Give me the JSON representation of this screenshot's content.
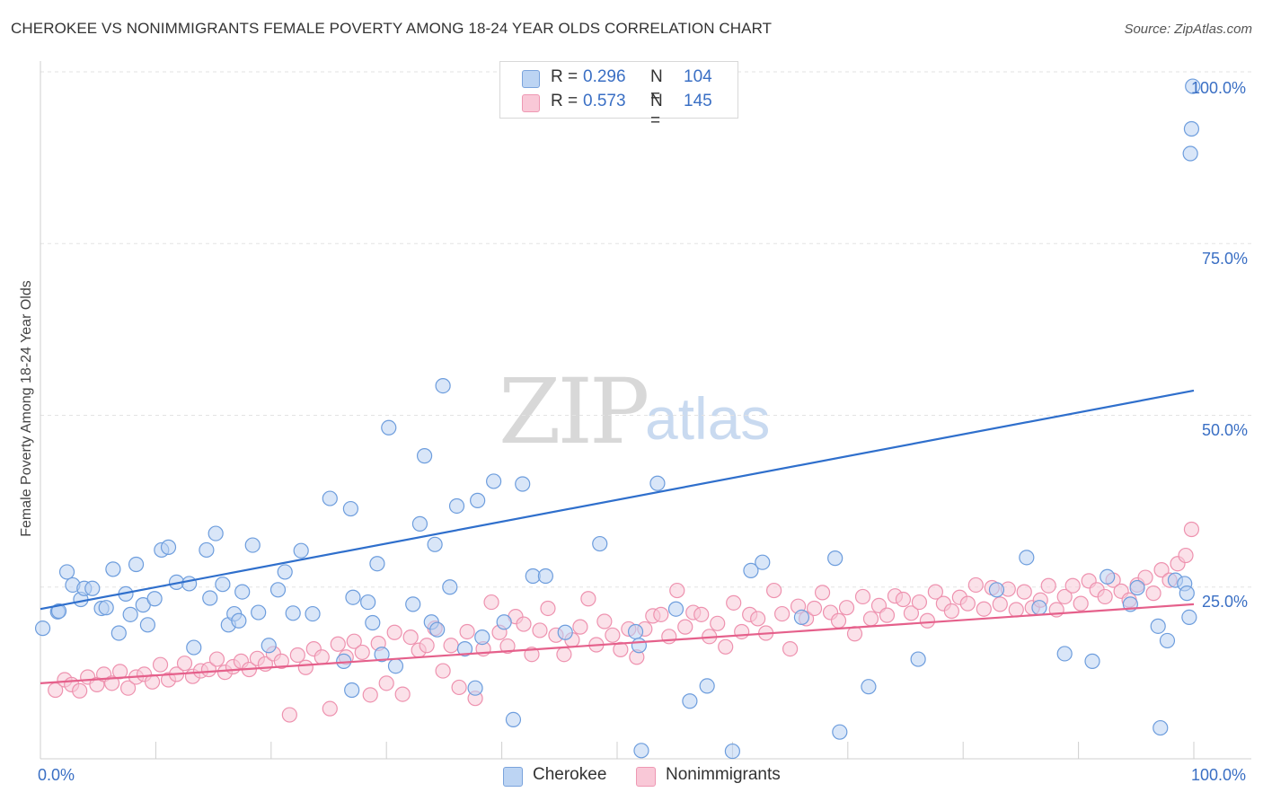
{
  "header": {
    "title": "CHEROKEE VS NONIMMIGRANTS FEMALE POVERTY AMONG 18-24 YEAR OLDS CORRELATION CHART",
    "source": "Source: ZipAtlas.com"
  },
  "watermark": {
    "part1": "ZIP",
    "part2": "atlas"
  },
  "legend_top": {
    "rows": [
      {
        "r_label": "R =",
        "r_value": "0.296",
        "n_label": "N =",
        "n_value": "104",
        "color": "#a9c8ef"
      },
      {
        "r_label": "R =",
        "r_value": "0.573",
        "n_label": "N =",
        "n_value": "145",
        "color": "#f5b8cb"
      }
    ]
  },
  "colors": {
    "cherokee_fill": "#b9d2f2",
    "cherokee_stroke": "#6d9ddd",
    "cherokee_line": "#2f6fcc",
    "nonimm_fill": "#f8c9d7",
    "nonimm_stroke": "#ee92af",
    "nonimm_line": "#e5608b",
    "tick_text": "#3a6fc4",
    "grid": "#e3e3e3"
  },
  "chart_data": {
    "type": "scatter",
    "title": "CHEROKEE VS NONIMMIGRANTS FEMALE POVERTY AMONG 18-24 YEAR OLDS CORRELATION CHART",
    "xlabel": "",
    "ylabel": "Female Poverty Among 18-24 Year Olds",
    "xlim": [
      0,
      100
    ],
    "ylim": [
      0,
      100
    ],
    "x_tick_labels": [
      "0.0%",
      "100.0%"
    ],
    "y_tick_labels": [
      "25.0%",
      "50.0%",
      "75.0%",
      "100.0%"
    ],
    "y_ticks": [
      25,
      50,
      75,
      100
    ],
    "grid": "horizontal dashed",
    "legend_position": "top-center and bottom",
    "series": [
      {
        "name": "Cherokee",
        "R": 0.296,
        "N": 104,
        "trend": [
          [
            0,
            21.8
          ],
          [
            100,
            53.6
          ]
        ],
        "points": [
          [
            0.2,
            19.0
          ],
          [
            1.5,
            21.4
          ],
          [
            1.6,
            21.5
          ],
          [
            2.3,
            27.2
          ],
          [
            2.8,
            25.3
          ],
          [
            3.5,
            23.2
          ],
          [
            3.8,
            24.8
          ],
          [
            4.5,
            24.8
          ],
          [
            5.3,
            21.9
          ],
          [
            5.7,
            22.0
          ],
          [
            6.3,
            27.6
          ],
          [
            6.8,
            18.3
          ],
          [
            7.4,
            24.0
          ],
          [
            7.8,
            21.0
          ],
          [
            8.3,
            28.3
          ],
          [
            8.9,
            22.4
          ],
          [
            9.3,
            19.5
          ],
          [
            9.9,
            23.3
          ],
          [
            10.5,
            30.4
          ],
          [
            11.1,
            30.8
          ],
          [
            11.8,
            25.7
          ],
          [
            12.9,
            25.5
          ],
          [
            13.3,
            16.2
          ],
          [
            14.4,
            30.4
          ],
          [
            14.7,
            23.4
          ],
          [
            15.2,
            32.8
          ],
          [
            15.8,
            25.4
          ],
          [
            16.3,
            19.5
          ],
          [
            16.8,
            21.1
          ],
          [
            17.2,
            20.1
          ],
          [
            17.5,
            24.3
          ],
          [
            18.4,
            31.1
          ],
          [
            18.9,
            21.3
          ],
          [
            19.8,
            16.5
          ],
          [
            20.6,
            24.6
          ],
          [
            21.2,
            27.2
          ],
          [
            21.9,
            21.2
          ],
          [
            22.6,
            30.3
          ],
          [
            23.6,
            21.1
          ],
          [
            25.1,
            37.9
          ],
          [
            26.3,
            14.2
          ],
          [
            26.9,
            36.4
          ],
          [
            27.0,
            10.0
          ],
          [
            27.1,
            23.5
          ],
          [
            28.4,
            22.8
          ],
          [
            28.8,
            19.8
          ],
          [
            29.2,
            28.4
          ],
          [
            29.6,
            15.2
          ],
          [
            30.2,
            48.2
          ],
          [
            30.8,
            13.5
          ],
          [
            32.3,
            22.5
          ],
          [
            32.9,
            34.2
          ],
          [
            33.3,
            44.1
          ],
          [
            33.9,
            19.9
          ],
          [
            34.2,
            31.2
          ],
          [
            34.4,
            18.8
          ],
          [
            34.9,
            54.3
          ],
          [
            35.5,
            25.0
          ],
          [
            36.1,
            36.8
          ],
          [
            36.8,
            16.0
          ],
          [
            37.7,
            10.3
          ],
          [
            37.9,
            37.6
          ],
          [
            38.3,
            17.7
          ],
          [
            39.3,
            40.4
          ],
          [
            40.2,
            19.9
          ],
          [
            41.0,
            5.7
          ],
          [
            41.8,
            40.0
          ],
          [
            42.7,
            26.6
          ],
          [
            43.8,
            26.6
          ],
          [
            45.5,
            18.4
          ],
          [
            48.5,
            31.3
          ],
          [
            51.6,
            18.5
          ],
          [
            51.9,
            16.5
          ],
          [
            52.1,
            1.2
          ],
          [
            53.5,
            40.1
          ],
          [
            55.1,
            21.8
          ],
          [
            56.3,
            8.4
          ],
          [
            57.8,
            10.6
          ],
          [
            60.0,
            1.1
          ],
          [
            61.6,
            27.4
          ],
          [
            62.6,
            28.6
          ],
          [
            66.0,
            20.6
          ],
          [
            68.9,
            29.2
          ],
          [
            69.3,
            3.9
          ],
          [
            71.8,
            10.5
          ],
          [
            76.1,
            14.5
          ],
          [
            82.9,
            24.6
          ],
          [
            85.5,
            29.3
          ],
          [
            86.6,
            22.0
          ],
          [
            88.8,
            15.3
          ],
          [
            91.2,
            14.2
          ],
          [
            92.5,
            26.5
          ],
          [
            94.5,
            22.5
          ],
          [
            95.1,
            24.9
          ],
          [
            96.9,
            19.3
          ],
          [
            97.1,
            4.5
          ],
          [
            97.7,
            17.2
          ],
          [
            98.4,
            26.0
          ],
          [
            99.2,
            25.5
          ],
          [
            99.4,
            24.1
          ],
          [
            99.6,
            20.6
          ],
          [
            99.7,
            88.1
          ],
          [
            99.8,
            91.7
          ],
          [
            99.9,
            97.9
          ]
        ]
      },
      {
        "name": "Nonimmigrants",
        "R": 0.573,
        "N": 145,
        "trend": [
          [
            0,
            11.0
          ],
          [
            100,
            22.5
          ]
        ],
        "points": [
          [
            1.3,
            10.0
          ],
          [
            2.1,
            11.5
          ],
          [
            2.7,
            10.8
          ],
          [
            3.4,
            9.9
          ],
          [
            4.1,
            11.9
          ],
          [
            4.9,
            10.8
          ],
          [
            5.5,
            12.3
          ],
          [
            6.2,
            11.0
          ],
          [
            6.9,
            12.7
          ],
          [
            7.6,
            10.3
          ],
          [
            8.3,
            11.9
          ],
          [
            9.0,
            12.3
          ],
          [
            9.7,
            11.2
          ],
          [
            10.4,
            13.7
          ],
          [
            11.1,
            11.5
          ],
          [
            11.8,
            12.3
          ],
          [
            12.5,
            13.9
          ],
          [
            13.2,
            12.0
          ],
          [
            13.9,
            12.8
          ],
          [
            14.6,
            13.0
          ],
          [
            15.3,
            14.5
          ],
          [
            16.0,
            12.6
          ],
          [
            16.7,
            13.4
          ],
          [
            17.4,
            14.2
          ],
          [
            18.1,
            13.0
          ],
          [
            18.8,
            14.6
          ],
          [
            19.5,
            13.8
          ],
          [
            20.2,
            15.3
          ],
          [
            20.9,
            14.2
          ],
          [
            21.6,
            6.4
          ],
          [
            22.3,
            15.1
          ],
          [
            23.0,
            13.3
          ],
          [
            23.7,
            16.0
          ],
          [
            24.4,
            14.8
          ],
          [
            25.1,
            7.3
          ],
          [
            25.8,
            16.7
          ],
          [
            26.5,
            14.8
          ],
          [
            27.2,
            17.1
          ],
          [
            27.9,
            15.5
          ],
          [
            28.6,
            9.3
          ],
          [
            29.3,
            16.8
          ],
          [
            30.0,
            11.0
          ],
          [
            30.7,
            18.4
          ],
          [
            31.4,
            9.4
          ],
          [
            32.1,
            17.7
          ],
          [
            32.8,
            15.8
          ],
          [
            33.5,
            16.5
          ],
          [
            34.2,
            19.0
          ],
          [
            34.9,
            12.8
          ],
          [
            35.6,
            16.5
          ],
          [
            36.3,
            10.4
          ],
          [
            37.0,
            18.5
          ],
          [
            37.7,
            8.8
          ],
          [
            38.4,
            16.0
          ],
          [
            39.1,
            22.8
          ],
          [
            39.8,
            18.4
          ],
          [
            40.5,
            16.4
          ],
          [
            41.2,
            20.7
          ],
          [
            41.9,
            19.6
          ],
          [
            42.6,
            15.2
          ],
          [
            43.3,
            18.7
          ],
          [
            44.0,
            21.9
          ],
          [
            44.7,
            18.0
          ],
          [
            45.4,
            15.2
          ],
          [
            46.1,
            17.3
          ],
          [
            46.8,
            19.2
          ],
          [
            47.5,
            23.3
          ],
          [
            48.2,
            16.6
          ],
          [
            48.9,
            20.0
          ],
          [
            49.6,
            18.0
          ],
          [
            50.3,
            15.9
          ],
          [
            51.0,
            18.9
          ],
          [
            51.7,
            14.8
          ],
          [
            52.4,
            18.9
          ],
          [
            53.1,
            20.8
          ],
          [
            53.8,
            21.0
          ],
          [
            54.5,
            17.8
          ],
          [
            55.2,
            24.5
          ],
          [
            55.9,
            19.2
          ],
          [
            56.6,
            21.3
          ],
          [
            57.3,
            21.0
          ],
          [
            58.0,
            17.8
          ],
          [
            58.7,
            19.7
          ],
          [
            59.4,
            16.3
          ],
          [
            60.1,
            22.7
          ],
          [
            60.8,
            18.5
          ],
          [
            61.5,
            21.0
          ],
          [
            62.2,
            20.4
          ],
          [
            62.9,
            18.3
          ],
          [
            63.6,
            24.5
          ],
          [
            64.3,
            21.1
          ],
          [
            65.0,
            16.0
          ],
          [
            65.7,
            22.2
          ],
          [
            66.4,
            20.4
          ],
          [
            67.1,
            21.9
          ],
          [
            67.8,
            24.2
          ],
          [
            68.5,
            21.3
          ],
          [
            69.2,
            20.1
          ],
          [
            69.9,
            22.0
          ],
          [
            70.6,
            18.2
          ],
          [
            71.3,
            23.6
          ],
          [
            72.0,
            20.4
          ],
          [
            72.7,
            22.3
          ],
          [
            73.4,
            20.9
          ],
          [
            74.1,
            23.7
          ],
          [
            74.8,
            23.2
          ],
          [
            75.5,
            21.2
          ],
          [
            76.2,
            22.8
          ],
          [
            76.9,
            20.1
          ],
          [
            77.6,
            24.3
          ],
          [
            78.3,
            22.6
          ],
          [
            79.0,
            21.5
          ],
          [
            79.7,
            23.5
          ],
          [
            80.4,
            22.6
          ],
          [
            81.1,
            25.3
          ],
          [
            81.8,
            21.8
          ],
          [
            82.5,
            24.9
          ],
          [
            83.2,
            22.5
          ],
          [
            83.9,
            24.7
          ],
          [
            84.6,
            21.7
          ],
          [
            85.3,
            24.3
          ],
          [
            86.0,
            22.0
          ],
          [
            86.7,
            23.1
          ],
          [
            87.4,
            25.2
          ],
          [
            88.1,
            21.7
          ],
          [
            88.8,
            23.6
          ],
          [
            89.5,
            25.2
          ],
          [
            90.2,
            22.6
          ],
          [
            90.9,
            25.9
          ],
          [
            91.6,
            24.6
          ],
          [
            92.3,
            23.6
          ],
          [
            93.0,
            26.0
          ],
          [
            93.7,
            24.4
          ],
          [
            94.4,
            23.1
          ],
          [
            95.1,
            25.3
          ],
          [
            95.8,
            26.4
          ],
          [
            96.5,
            24.1
          ],
          [
            97.2,
            27.5
          ],
          [
            97.9,
            26.0
          ],
          [
            98.6,
            28.4
          ],
          [
            99.3,
            29.6
          ],
          [
            99.8,
            33.4
          ]
        ]
      }
    ]
  },
  "legend_bottom": {
    "items": [
      {
        "label": "Cherokee",
        "color": "#a9c8ef"
      },
      {
        "label": "Nonimmigrants",
        "color": "#f5b8cb"
      }
    ]
  }
}
